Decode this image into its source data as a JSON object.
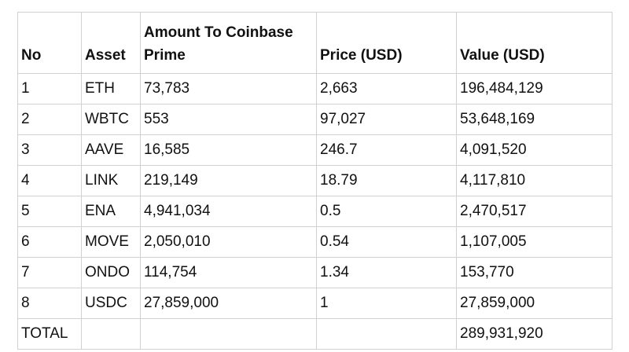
{
  "table": {
    "header": [
      "No",
      "Asset",
      "Amount To Coinbase Prime",
      "Price (USD)",
      "Value (USD)"
    ],
    "rows": [
      [
        "1",
        "ETH",
        "73,783",
        "2,663",
        "196,484,129"
      ],
      [
        "2",
        "WBTC",
        "553",
        "97,027",
        "53,648,169"
      ],
      [
        "3",
        "AAVE",
        "16,585",
        "246.7",
        "4,091,520"
      ],
      [
        "4",
        "LINK",
        "219,149",
        "18.79",
        "4,117,810"
      ],
      [
        "5",
        "ENA",
        "4,941,034",
        "0.5",
        "2,470,517"
      ],
      [
        "6",
        "MOVE",
        "2,050,010",
        "0.54",
        "1,107,005"
      ],
      [
        "7",
        "ONDO",
        "114,754",
        "1.34",
        "153,770"
      ],
      [
        "8",
        "USDC",
        "27,859,000",
        "1",
        "27,859,000"
      ]
    ],
    "total": {
      "label": "TOTAL",
      "value": "289,931,920"
    }
  }
}
